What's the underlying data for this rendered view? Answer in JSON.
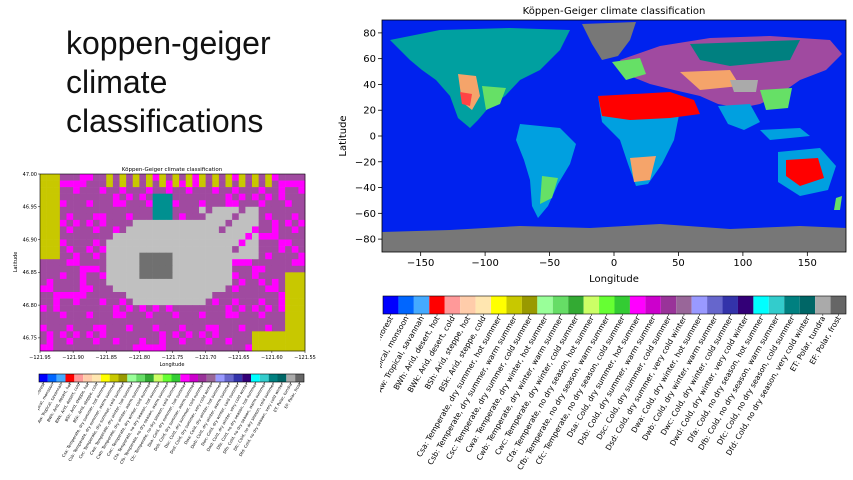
{
  "slide": {
    "title_lines": [
      "koppen-geiger",
      "climate",
      "classifications"
    ]
  },
  "colors": {
    "ocean": "#0022ee",
    "polar": "#777777",
    "desert": "#ff0000",
    "steppe": "#f5a46a",
    "tropical": "#00a0e0",
    "temperate": "#66e066",
    "cold_forest": "#008080",
    "tundra_local": "#a0a0a0",
    "local_a": "#a04aa0",
    "local_b": "#ff00ff",
    "local_c": "#c8c800",
    "local_d": "#c0c0c0",
    "local_e": "#707070",
    "local_f": "#009090"
  },
  "chart_data": [
    {
      "type": "heatmap",
      "title": "Köppen-Geiger climate classification",
      "xlabel": "Longitude",
      "ylabel": "Latitude",
      "xlim": [
        -180,
        180
      ],
      "ylim": [
        -90,
        90
      ],
      "xticks": [
        "−150",
        "−100",
        "−50",
        "0",
        "50",
        "100",
        "150"
      ],
      "yticks": [
        "80",
        "60",
        "40",
        "20",
        "0",
        "−20",
        "−40",
        "−60",
        "−80"
      ],
      "legend": {
        "colors": [
          "#0000ff",
          "#0066ff",
          "#44aaff",
          "#ff0000",
          "#ff9999",
          "#ffccaa",
          "#ffe6b0",
          "#ffff00",
          "#c8c800",
          "#999900",
          "#99ff99",
          "#66dd66",
          "#33aa33",
          "#ccff66",
          "#66ff33",
          "#33cc33",
          "#ff00ff",
          "#cc00cc",
          "#993399",
          "#996699",
          "#9999ff",
          "#6666cc",
          "#3333aa",
          "#330077",
          "#00ffff",
          "#33cccc",
          "#008080",
          "#006666",
          "#aaaaaa",
          "#666666"
        ],
        "labels": [
          "Af: Tropical, rainforest",
          "Am: Tropical, monsoon",
          "Aw: Tropical, savannah",
          "BWh: Arid, desert, hot",
          "BWk: Arid, desert, cold",
          "BSh: Arid, steppe, hot",
          "BSk: Arid, steppe, cold",
          "Csa: Temperate, dry summer, hot summer",
          "Csb: Temperate, dry summer, warm summer",
          "Csc: Temperate, dry summer, cold summer",
          "Cwa: Temperate, dry winter, hot summer",
          "Cwb: Temperate, dry winter, warm summer",
          "Cwc: Temperate, dry winter, cold summer",
          "Cfa: Temperate, no dry season, hot summer",
          "Cfb: Temperate, no dry season, warm summer",
          "Cfc: Temperate, no dry season, cold summer",
          "Dsa: Cold, dry summer, hot summer",
          "Dsb: Cold, dry summer, warm summer",
          "Dsc: Cold, dry summer, cold summer",
          "Dsd: Cold, dry summer, very cold winter",
          "Dwa: Cold, dry winter, hot summer",
          "Dwb: Cold, dry winter, warm summer",
          "Dwc: Cold, dry winter, cold summer",
          "Dwd: Cold, dry winter, very cold winter",
          "Dfa: Cold, no dry season, hot summer",
          "Dfb: Cold, no dry season, warm summer",
          "Dfc: Cold, no dry season, cold summer",
          "Dfd: Cold, no dry season, very cold winter",
          "ET: Polar, tundra",
          "EF: Polar, frost"
        ]
      }
    },
    {
      "type": "heatmap",
      "title": "Köppen-Geiger climate classification",
      "xlabel": "Longitude",
      "ylabel": "Latitude",
      "xlim": [
        -121.95,
        -121.55
      ],
      "ylim": [
        46.73,
        47.0
      ],
      "xticks": [
        "−121.95",
        "−121.90",
        "−121.85",
        "−121.80",
        "−121.75",
        "−121.70",
        "−121.65",
        "−121.60",
        "−121.55"
      ],
      "yticks": [
        "47.00",
        "46.95",
        "46.90",
        "46.85",
        "46.80",
        "46.75"
      ],
      "legend": {
        "colors": [
          "#0000ff",
          "#0066ff",
          "#44aaff",
          "#ff0000",
          "#ff9999",
          "#ffccaa",
          "#ffe6b0",
          "#ffff00",
          "#c8c800",
          "#999900",
          "#99ff99",
          "#66dd66",
          "#33aa33",
          "#ccff66",
          "#66ff33",
          "#33cc33",
          "#ff00ff",
          "#cc00cc",
          "#993399",
          "#996699",
          "#9999ff",
          "#6666cc",
          "#3333aa",
          "#330077",
          "#00ffff",
          "#33cccc",
          "#008080",
          "#006666",
          "#aaaaaa",
          "#666666"
        ],
        "labels": [
          "Af: Tropical, rainforest",
          "Am: Tropical, monsoon",
          "Aw: Tropical, savannah",
          "BWh: Arid, desert, hot",
          "BWk: Arid, desert, cold",
          "BSh: Arid, steppe, hot",
          "BSk: Arid, steppe, cold",
          "Csa: Temperate, dry summer, hot summer",
          "Csb: Temperate, dry summer, warm summer",
          "Csc: Temperate, dry summer, cold summer",
          "Cwa: Temperate, dry winter, hot summer",
          "Cwb: Temperate, dry winter, warm summer",
          "Cwc: Temperate, dry winter, cold summer",
          "Cfa: Temperate, no dry season, hot summer",
          "Cfb: Temperate, no dry season, warm summer",
          "Cfc: Temperate, no dry season, cold summer",
          "Dsa: Cold, dry summer, hot summer",
          "Dsb: Cold, dry summer, warm summer",
          "Dsc: Cold, dry summer, cold summer",
          "Dsd: Cold, dry summer, very cold winter",
          "Dwa: Cold, dry winter, hot summer",
          "Dwb: Cold, dry winter, warm summer",
          "Dwc: Cold, dry winter, cold summer",
          "Dwd: Cold, dry winter, very cold winter",
          "Dfa: Cold, no dry season, hot summer",
          "Dfb: Cold, no dry season, warm summer",
          "Dfc: Cold, no dry season, cold summer",
          "Dfd: Cold, no dry season, very cold winter",
          "ET: Polar, tundra",
          "EF: Polar, frost"
        ]
      }
    }
  ]
}
